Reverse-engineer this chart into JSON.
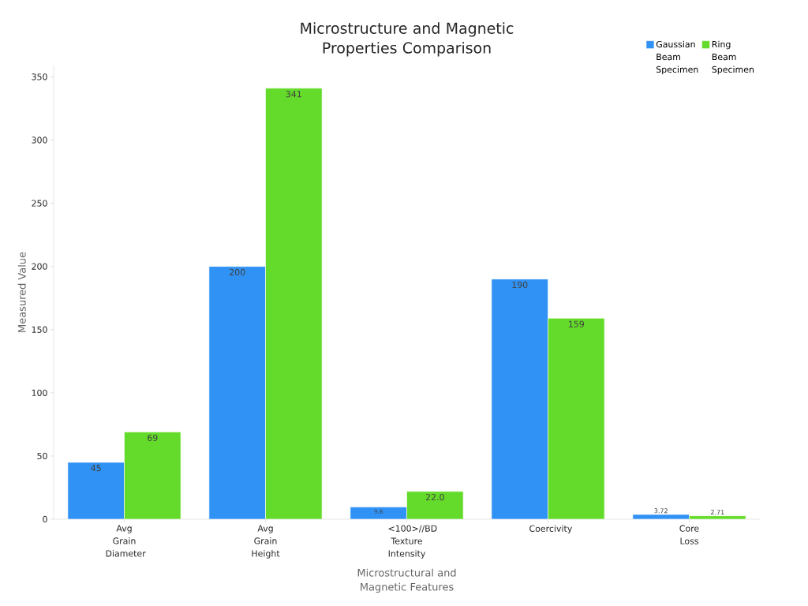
{
  "chart_data": {
    "type": "bar",
    "title": "Microstructure and Magnetic Properties Comparison",
    "xlabel": "Microstructural and Magnetic Features",
    "ylabel": "Measured Value",
    "categories": [
      "Avg Grain Diameter",
      "Avg Grain Height",
      "<100>//BD Texture Intensity",
      "Coercivity",
      "Core Loss"
    ],
    "series": [
      {
        "name": "Gaussian Beam Specimen",
        "color": "#3192f5",
        "values": [
          45,
          200,
          9.6,
          190,
          3.72
        ],
        "value_labels": [
          "45",
          "200",
          "9.6",
          "190",
          "3.72"
        ]
      },
      {
        "name": "Ring Beam Specimen",
        "color": "#64db2a",
        "values": [
          69,
          341,
          22.0,
          159,
          2.71
        ],
        "value_labels": [
          "69",
          "341",
          "22.0",
          "159",
          "2.71"
        ]
      }
    ],
    "ylim": [
      0,
      359
    ],
    "yticks": [
      0,
      50,
      100,
      150,
      200,
      250,
      300,
      350
    ],
    "grid": false,
    "legend": "top right"
  }
}
